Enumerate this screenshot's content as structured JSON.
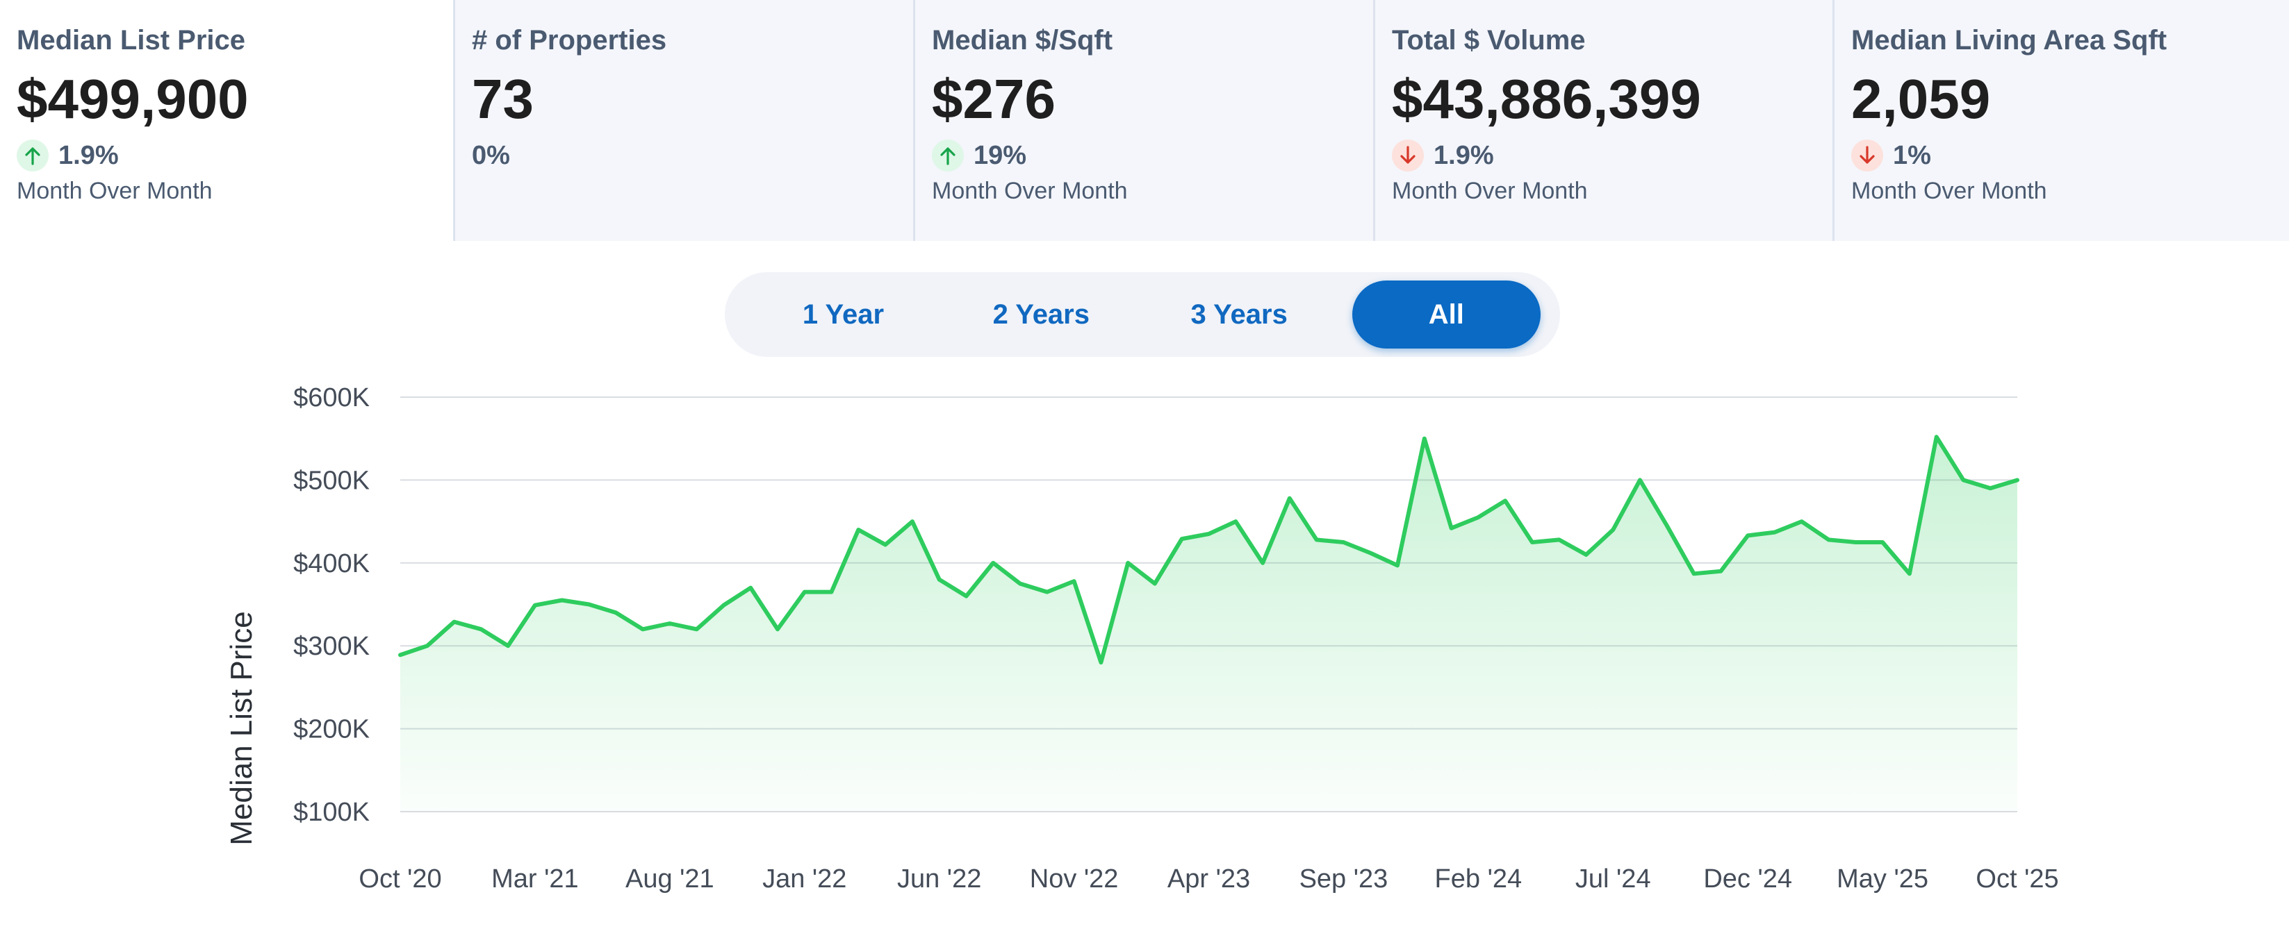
{
  "stats": [
    {
      "title": "Median List Price",
      "value": "$499,900",
      "change": "1.9%",
      "direction": "up",
      "caption": "Month Over Month"
    },
    {
      "title": "# of Properties",
      "value": "73",
      "change": "0%",
      "direction": "none",
      "caption": ""
    },
    {
      "title": "Median $/Sqft",
      "value": "$276",
      "change": "19%",
      "direction": "up",
      "caption": "Month Over Month"
    },
    {
      "title": "Total $ Volume",
      "value": "$43,886,399",
      "change": "1.9%",
      "direction": "down",
      "caption": "Month Over Month"
    },
    {
      "title": "Median Living Area Sqft",
      "value": "2,059",
      "change": "1%",
      "direction": "down",
      "caption": "Month Over Month"
    }
  ],
  "colors": {
    "up": "#17a44a",
    "down": "#d8382a",
    "accent": "#0a6ac4",
    "line": "#2ecc5e"
  },
  "range_toggle": {
    "options": [
      "1 Year",
      "2 Years",
      "3 Years",
      "All"
    ],
    "selected": "All"
  },
  "chart_data": {
    "type": "area",
    "title": "",
    "xlabel": "",
    "ylabel": "Median List Price",
    "ylim": [
      100000,
      600000
    ],
    "y_ticks": [
      600000,
      500000,
      400000,
      300000,
      200000,
      100000
    ],
    "y_tick_labels": [
      "$600K",
      "$500K",
      "$400K",
      "$300K",
      "$200K",
      "$100K"
    ],
    "x_tick_labels": [
      "Oct '20",
      "Mar '21",
      "Aug '21",
      "Jan '22",
      "Jun '22",
      "Nov '22",
      "Apr '23",
      "Sep '23",
      "Feb '24",
      "Jul '24",
      "Dec '24",
      "May '25",
      "Oct '25"
    ],
    "grid": true,
    "series": [
      {
        "values": [
          289000,
          300000,
          329000,
          320000,
          300000,
          349000,
          355000,
          350000,
          340000,
          320000,
          327000,
          320000,
          349000,
          370000,
          320000,
          365000,
          365000,
          440000,
          422000,
          450000,
          380000,
          360000,
          400000,
          375000,
          365000,
          378000,
          280000,
          400000,
          375000,
          429000,
          435000,
          450000,
          400000,
          478000,
          428000,
          425000,
          412000,
          397000,
          550000,
          442000,
          455000,
          475000,
          425000,
          428000,
          410000,
          440000,
          500000,
          445000,
          387000,
          390000,
          433000,
          437000,
          450000,
          428000,
          425000,
          425000,
          387000,
          552000,
          500000,
          490000,
          499900
        ]
      }
    ]
  }
}
